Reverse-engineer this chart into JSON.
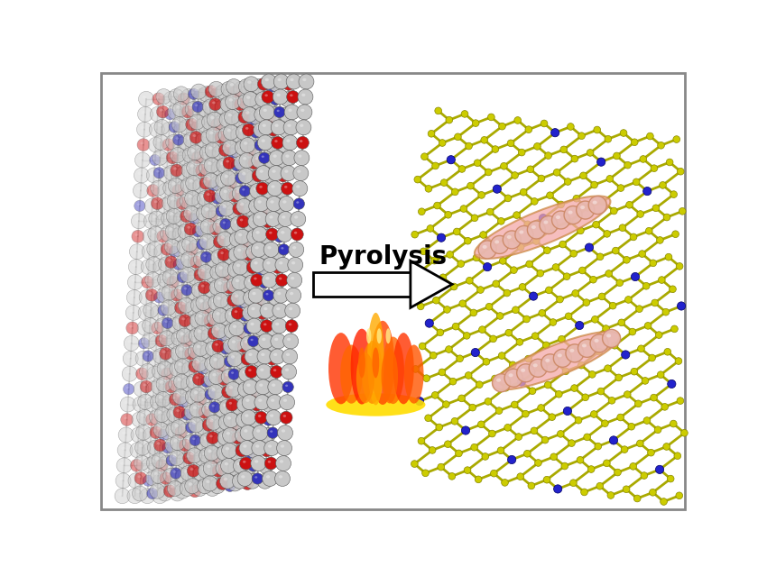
{
  "background_color": "#ffffff",
  "border_color": "#888888",
  "arrow_text": "Pyrolysis",
  "arrow_text_fontsize": 20,
  "arrow_text_fontweight": "bold",
  "cof_colors": {
    "carbon": "#c8c8c8",
    "carbon_dark": "#a0a0a0",
    "oxygen": "#cc1111",
    "nitrogen": "#3333bb",
    "bond": "#999999"
  },
  "graphene_colors": {
    "carbon": "#cccc00",
    "nitrogen": "#2222cc",
    "bond": "#aaaa00",
    "highlight_fill": "#f4a8a8",
    "highlight_edge": "#cc8844",
    "sphere_fill": "#e8b8b0",
    "sphere_edge": "#cc8866"
  }
}
